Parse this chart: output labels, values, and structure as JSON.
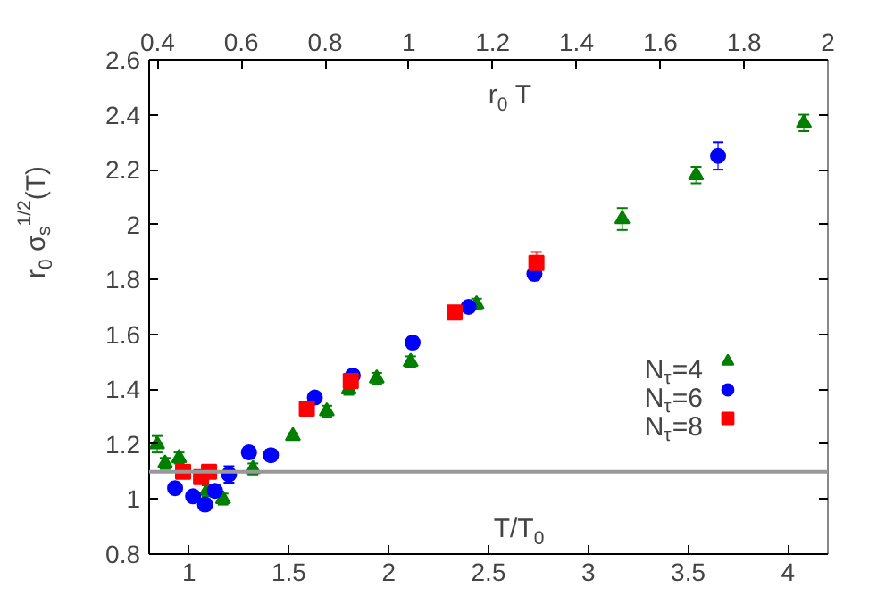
{
  "chart_data": {
    "type": "scatter",
    "xlabel": "T/T$_{0}$",
    "ylabel": "r$_{0}$ σ$_{s}$$^{1/2}$(T)",
    "x2label": "r$_{0}$ T",
    "xlim": [
      0.8,
      4.2
    ],
    "xticks": [
      1,
      1.5,
      2,
      2.5,
      3,
      3.5,
      4
    ],
    "x2lim": [
      0.38,
      2
    ],
    "x2ticks": [
      0.4,
      0.6,
      0.8,
      1,
      1.2,
      1.4,
      1.6,
      1.8,
      2
    ],
    "ylim": [
      0.8,
      2.6
    ],
    "yticks": [
      0.8,
      1,
      1.2,
      1.4,
      1.6,
      1.8,
      2,
      2.2,
      2.4,
      2.6
    ],
    "grid": false,
    "legend": "right",
    "ref_lines": [
      {
        "axis": "y",
        "value": 1.1,
        "color": "#999999"
      }
    ],
    "series": [
      {
        "name": "N$_{τ}$=4",
        "color": "#007f00",
        "marker": "triangle",
        "x": [
          0.84,
          0.88,
          0.95,
          1.09,
          1.17,
          1.32,
          1.52,
          1.69,
          1.8,
          1.94,
          2.11,
          2.44,
          3.17,
          3.54,
          4.08
        ],
        "values": [
          1.2,
          1.13,
          1.15,
          1.03,
          1.0,
          1.11,
          1.23,
          1.32,
          1.4,
          1.44,
          1.5,
          1.71,
          2.02,
          2.18,
          2.37
        ],
        "errors": [
          0.03,
          0.02,
          0.02,
          0.02,
          0.02,
          0.02,
          0.01,
          0.02,
          0.02,
          0.02,
          0.02,
          0.02,
          0.04,
          0.03,
          0.03
        ]
      },
      {
        "name": "N$_{τ}$=6",
        "color": "#0000ff",
        "marker": "circle",
        "x": [
          0.93,
          1.02,
          1.08,
          1.13,
          1.2,
          1.3,
          1.41,
          1.63,
          1.82,
          2.12,
          2.4,
          2.73,
          3.65
        ],
        "values": [
          1.04,
          1.01,
          0.98,
          1.03,
          1.09,
          1.17,
          1.16,
          1.37,
          1.45,
          1.57,
          1.7,
          1.82,
          2.25
        ],
        "errors": [
          0.01,
          0.01,
          0.02,
          0.02,
          0.03,
          0.02,
          0.02,
          0.01,
          0.01,
          0.02,
          0.01,
          0.01,
          0.05
        ]
      },
      {
        "name": "N$_{τ}$=8",
        "color": "#ff0000",
        "marker": "square",
        "x": [
          0.97,
          1.06,
          1.1,
          1.59,
          1.81,
          2.33,
          2.74
        ],
        "values": [
          1.1,
          1.08,
          1.1,
          1.33,
          1.43,
          1.68,
          1.86
        ],
        "errors": [
          0.01,
          0.02,
          0.02,
          0.01,
          0.01,
          0.01,
          0.04
        ]
      }
    ]
  }
}
